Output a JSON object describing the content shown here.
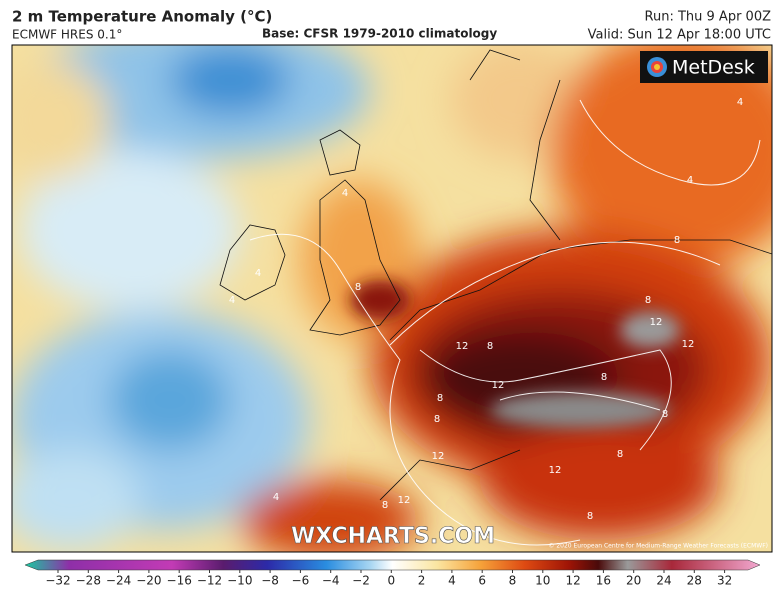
{
  "header": {
    "title": "2 m Temperature Anomaly (°C)",
    "model": "ECMWF HRES 0.1°",
    "base": "Base: CFSR 1979-2010 climatology",
    "run": "Run: Thu 9 Apr 00Z",
    "valid": "Valid: Sun 12 Apr 18:00 UTC"
  },
  "map": {
    "logo": "MetDesk",
    "watermark": "WXCHARTS.COM",
    "copyright": "© 2020 European Centre for Medium-Range Weather Forecasts (ECMWF)",
    "contour_labels": [
      "4",
      "4",
      "4",
      "4",
      "4",
      "8",
      "8",
      "8",
      "12",
      "12",
      "12",
      "12",
      "8",
      "8",
      "8",
      "12",
      "12",
      "8",
      "8",
      "12",
      "8",
      "8",
      "4",
      "8"
    ]
  },
  "colorbar": {
    "labels": [
      "−32",
      "−28",
      "−24",
      "−20",
      "−16",
      "−12",
      "−10",
      "−8",
      "−6",
      "−4",
      "−2",
      "0",
      "2",
      "4",
      "6",
      "8",
      "10",
      "12",
      "16",
      "20",
      "24",
      "28",
      "32"
    ]
  }
}
